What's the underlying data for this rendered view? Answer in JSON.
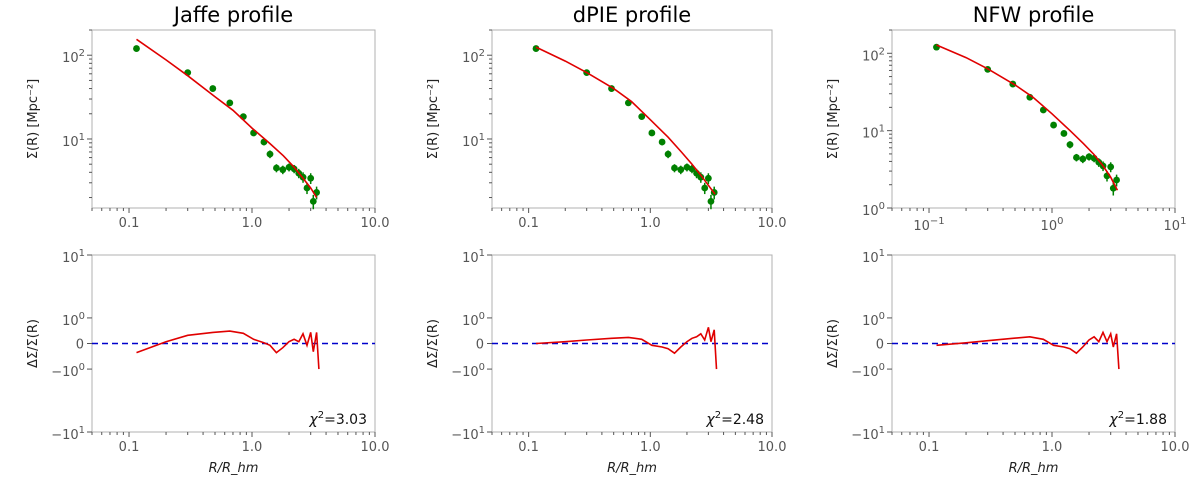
{
  "chart_data": [
    {
      "type": "scatter",
      "title": "Jaffe profile",
      "xlabel": "",
      "ylabel": "Σ(R) [Mpc⁻²]",
      "xscale": "log",
      "yscale": "log",
      "xlim": [
        0.05,
        10.0
      ],
      "ylim": [
        1.5,
        200
      ],
      "xticks": [
        {
          "v": 0.1,
          "label": "0.1"
        },
        {
          "v": 1,
          "label": "1.0"
        },
        {
          "v": 10,
          "label": "10.0"
        }
      ],
      "yticks": [
        {
          "v": 10,
          "base": "10",
          "exp": "1"
        },
        {
          "v": 100,
          "base": "10",
          "exp": "2"
        }
      ],
      "series": [
        {
          "kind": "points",
          "x": [
            0.115,
            0.3,
            0.48,
            0.66,
            0.85,
            1.03,
            1.25,
            1.4,
            1.58,
            1.78,
            2.0,
            2.2,
            2.4,
            2.6,
            2.8,
            3.0,
            3.15,
            3.35
          ],
          "y": [
            120,
            62,
            40,
            27,
            18.5,
            11.8,
            9.2,
            6.6,
            4.5,
            4.3,
            4.6,
            4.4,
            3.9,
            3.5,
            2.6,
            3.4,
            1.8,
            2.3
          ],
          "yerr": [
            0,
            0,
            0,
            0,
            0,
            0.9,
            0.8,
            0.7,
            0.5,
            0.5,
            0.5,
            0.5,
            0.5,
            0.5,
            0.4,
            0.5,
            0.35,
            0.4
          ],
          "color": "#008000"
        },
        {
          "kind": "line",
          "x": [
            0.115,
            0.2,
            0.3,
            0.5,
            0.7,
            1.0,
            1.4,
            1.8,
            2.2,
            2.6,
            3.0,
            3.35
          ],
          "y": [
            155,
            88,
            57,
            32,
            22,
            13.5,
            8.8,
            6.3,
            4.6,
            3.4,
            2.6,
            2.0
          ],
          "color": "#e00000"
        }
      ]
    },
    {
      "type": "scatter",
      "title": "dPIE profile",
      "xlabel": "",
      "ylabel": "Σ(R) [Mpc⁻²]",
      "xscale": "log",
      "yscale": "log",
      "xlim": [
        0.05,
        10.0
      ],
      "ylim": [
        1.5,
        200
      ],
      "xticks": [
        {
          "v": 0.1,
          "label": "0.1"
        },
        {
          "v": 1,
          "label": "1.0"
        },
        {
          "v": 10,
          "label": "10.0"
        }
      ],
      "yticks": [
        {
          "v": 10,
          "base": "10",
          "exp": "1"
        },
        {
          "v": 100,
          "base": "10",
          "exp": "2"
        }
      ],
      "series": [
        {
          "kind": "points",
          "x": [
            0.115,
            0.3,
            0.48,
            0.66,
            0.85,
            1.03,
            1.25,
            1.4,
            1.58,
            1.78,
            2.0,
            2.2,
            2.4,
            2.6,
            2.8,
            3.0,
            3.15,
            3.35
          ],
          "y": [
            120,
            62,
            40,
            27,
            18.5,
            11.8,
            9.2,
            6.6,
            4.5,
            4.3,
            4.6,
            4.4,
            3.9,
            3.5,
            2.6,
            3.4,
            1.8,
            2.3
          ],
          "yerr": [
            0,
            0,
            0,
            0,
            0,
            0.9,
            0.8,
            0.7,
            0.5,
            0.5,
            0.5,
            0.5,
            0.5,
            0.5,
            0.4,
            0.5,
            0.35,
            0.4
          ],
          "color": "#008000"
        },
        {
          "kind": "line",
          "x": [
            0.115,
            0.2,
            0.3,
            0.5,
            0.7,
            1.0,
            1.4,
            1.8,
            2.2,
            2.6,
            3.0,
            3.4
          ],
          "y": [
            125,
            85,
            62,
            40,
            28,
            17,
            10.5,
            7.0,
            5.0,
            3.7,
            2.8,
            2.2
          ],
          "color": "#e00000"
        }
      ]
    },
    {
      "type": "scatter",
      "title": "NFW profile",
      "xlabel": "",
      "ylabel": "Σ(R) [Mpc⁻²]",
      "xscale": "log",
      "yscale": "log",
      "xlim": [
        0.05,
        10.0
      ],
      "ylim": [
        1.0,
        200
      ],
      "xticks": [
        {
          "v": 0.1,
          "base": "10",
          "exp": "−1"
        },
        {
          "v": 1,
          "base": "10",
          "exp": "0"
        },
        {
          "v": 10,
          "base": "10",
          "exp": "1"
        }
      ],
      "yticks": [
        {
          "v": 1,
          "base": "10",
          "exp": "0"
        },
        {
          "v": 10,
          "base": "10",
          "exp": "1"
        },
        {
          "v": 100,
          "base": "10",
          "exp": "2"
        }
      ],
      "series": [
        {
          "kind": "points",
          "x": [
            0.115,
            0.3,
            0.48,
            0.66,
            0.85,
            1.03,
            1.25,
            1.4,
            1.58,
            1.78,
            2.0,
            2.2,
            2.4,
            2.6,
            2.8,
            3.0,
            3.15,
            3.35
          ],
          "y": [
            120,
            62,
            40,
            27,
            18.5,
            11.8,
            9.2,
            6.6,
            4.5,
            4.3,
            4.6,
            4.4,
            3.9,
            3.5,
            2.6,
            3.4,
            1.8,
            2.3
          ],
          "yerr": [
            0,
            0,
            0,
            0,
            0,
            0.9,
            0.8,
            0.7,
            0.5,
            0.5,
            0.5,
            0.5,
            0.5,
            0.5,
            0.4,
            0.5,
            0.35,
            0.4
          ],
          "color": "#008000"
        },
        {
          "kind": "line",
          "x": [
            0.115,
            0.2,
            0.3,
            0.5,
            0.7,
            1.0,
            1.4,
            1.8,
            2.2,
            2.6,
            3.0,
            3.4
          ],
          "y": [
            128,
            88,
            63,
            39,
            27,
            16.5,
            10.0,
            6.8,
            4.9,
            3.5,
            2.5,
            1.7
          ],
          "color": "#e00000"
        }
      ]
    },
    {
      "type": "line",
      "title": "",
      "xlabel": "R/R_hm",
      "ylabel": "ΔΣ/Σ(R)",
      "xscale": "log",
      "yscale": "symlog",
      "xlim": [
        0.05,
        10.0
      ],
      "ylim": [
        -10,
        10
      ],
      "xticks": [
        {
          "v": 0.1,
          "label": "0.1"
        },
        {
          "v": 1,
          "label": "1.0"
        },
        {
          "v": 10,
          "label": "10.0"
        }
      ],
      "yticks": [
        {
          "v": 10,
          "base": "10",
          "exp": "1"
        },
        {
          "v": 1,
          "base": "10",
          "exp": "0"
        },
        {
          "v": 0,
          "label": "0"
        },
        {
          "v": -1,
          "base": "−10",
          "exp": "0"
        },
        {
          "v": -10,
          "base": "−10",
          "exp": "1"
        }
      ],
      "reference_line": {
        "y": 0,
        "style": "dashed",
        "color": "#0000cc"
      },
      "chi2": "3.03",
      "series": [
        {
          "kind": "line",
          "x": [
            0.115,
            0.2,
            0.3,
            0.48,
            0.66,
            0.85,
            1.03,
            1.25,
            1.4,
            1.58,
            1.78,
            2.0,
            2.2,
            2.4,
            2.6,
            2.8,
            3.0,
            3.15,
            3.35,
            3.5
          ],
          "y": [
            -0.28,
            0.05,
            0.25,
            0.35,
            0.4,
            0.32,
            0.12,
            0.02,
            -0.05,
            -0.28,
            -0.12,
            0.05,
            0.12,
            0.05,
            0.3,
            -0.05,
            0.35,
            -0.25,
            0.35,
            -1.0
          ],
          "color": "#e00000"
        }
      ]
    },
    {
      "type": "line",
      "title": "",
      "xlabel": "R/R_hm",
      "ylabel": "ΔΣ/Σ(R)",
      "xscale": "log",
      "yscale": "symlog",
      "xlim": [
        0.05,
        10.0
      ],
      "ylim": [
        -10,
        10
      ],
      "xticks": [
        {
          "v": 0.1,
          "label": "0.1"
        },
        {
          "v": 1,
          "label": "1.0"
        },
        {
          "v": 10,
          "label": "10.0"
        }
      ],
      "yticks": [
        {
          "v": 10,
          "base": "10",
          "exp": "1"
        },
        {
          "v": 1,
          "base": "10",
          "exp": "0"
        },
        {
          "v": 0,
          "label": "0"
        },
        {
          "v": -1,
          "base": "−10",
          "exp": "0"
        },
        {
          "v": -10,
          "base": "−10",
          "exp": "1"
        }
      ],
      "reference_line": {
        "y": 0,
        "style": "dashed",
        "color": "#0000cc"
      },
      "chi2": "2.48",
      "series": [
        {
          "kind": "line",
          "x": [
            0.115,
            0.2,
            0.3,
            0.48,
            0.66,
            0.85,
            1.03,
            1.25,
            1.4,
            1.58,
            1.78,
            2.0,
            2.2,
            2.4,
            2.6,
            2.8,
            3.0,
            3.15,
            3.35,
            3.5
          ],
          "y": [
            0.0,
            0.05,
            0.1,
            0.15,
            0.18,
            0.12,
            -0.05,
            -0.1,
            -0.15,
            -0.3,
            -0.1,
            0.05,
            0.15,
            0.2,
            0.3,
            0.1,
            0.55,
            0.05,
            0.45,
            -1.0
          ],
          "color": "#e00000"
        }
      ]
    },
    {
      "type": "line",
      "title": "",
      "xlabel": "R/R_hm",
      "ylabel": "ΔΣ/Σ(R)",
      "xscale": "log",
      "yscale": "symlog",
      "xlim": [
        0.05,
        10.0
      ],
      "ylim": [
        -10,
        10
      ],
      "xticks": [
        {
          "v": 0.1,
          "label": "0.1"
        },
        {
          "v": 1,
          "label": "1.0"
        },
        {
          "v": 10,
          "label": "10.0"
        }
      ],
      "yticks": [
        {
          "v": 10,
          "base": "10",
          "exp": "1"
        },
        {
          "v": 1,
          "base": "10",
          "exp": "0"
        },
        {
          "v": 0,
          "label": "0"
        },
        {
          "v": -1,
          "base": "−10",
          "exp": "0"
        },
        {
          "v": -10,
          "base": "−10",
          "exp": "1"
        }
      ],
      "reference_line": {
        "y": 0,
        "style": "dashed",
        "color": "#0000cc"
      },
      "chi2": "1.88",
      "series": [
        {
          "kind": "line",
          "x": [
            0.115,
            0.2,
            0.3,
            0.48,
            0.66,
            0.85,
            1.03,
            1.25,
            1.4,
            1.58,
            1.78,
            2.0,
            2.2,
            2.4,
            2.6,
            2.8,
            3.0,
            3.15,
            3.35,
            3.5
          ],
          "y": [
            -0.05,
            0.02,
            0.08,
            0.15,
            0.2,
            0.12,
            -0.05,
            -0.1,
            -0.15,
            -0.3,
            -0.1,
            0.1,
            0.2,
            0.05,
            0.35,
            0.05,
            0.3,
            -0.1,
            0.3,
            -1.0
          ],
          "color": "#e00000"
        }
      ]
    }
  ]
}
